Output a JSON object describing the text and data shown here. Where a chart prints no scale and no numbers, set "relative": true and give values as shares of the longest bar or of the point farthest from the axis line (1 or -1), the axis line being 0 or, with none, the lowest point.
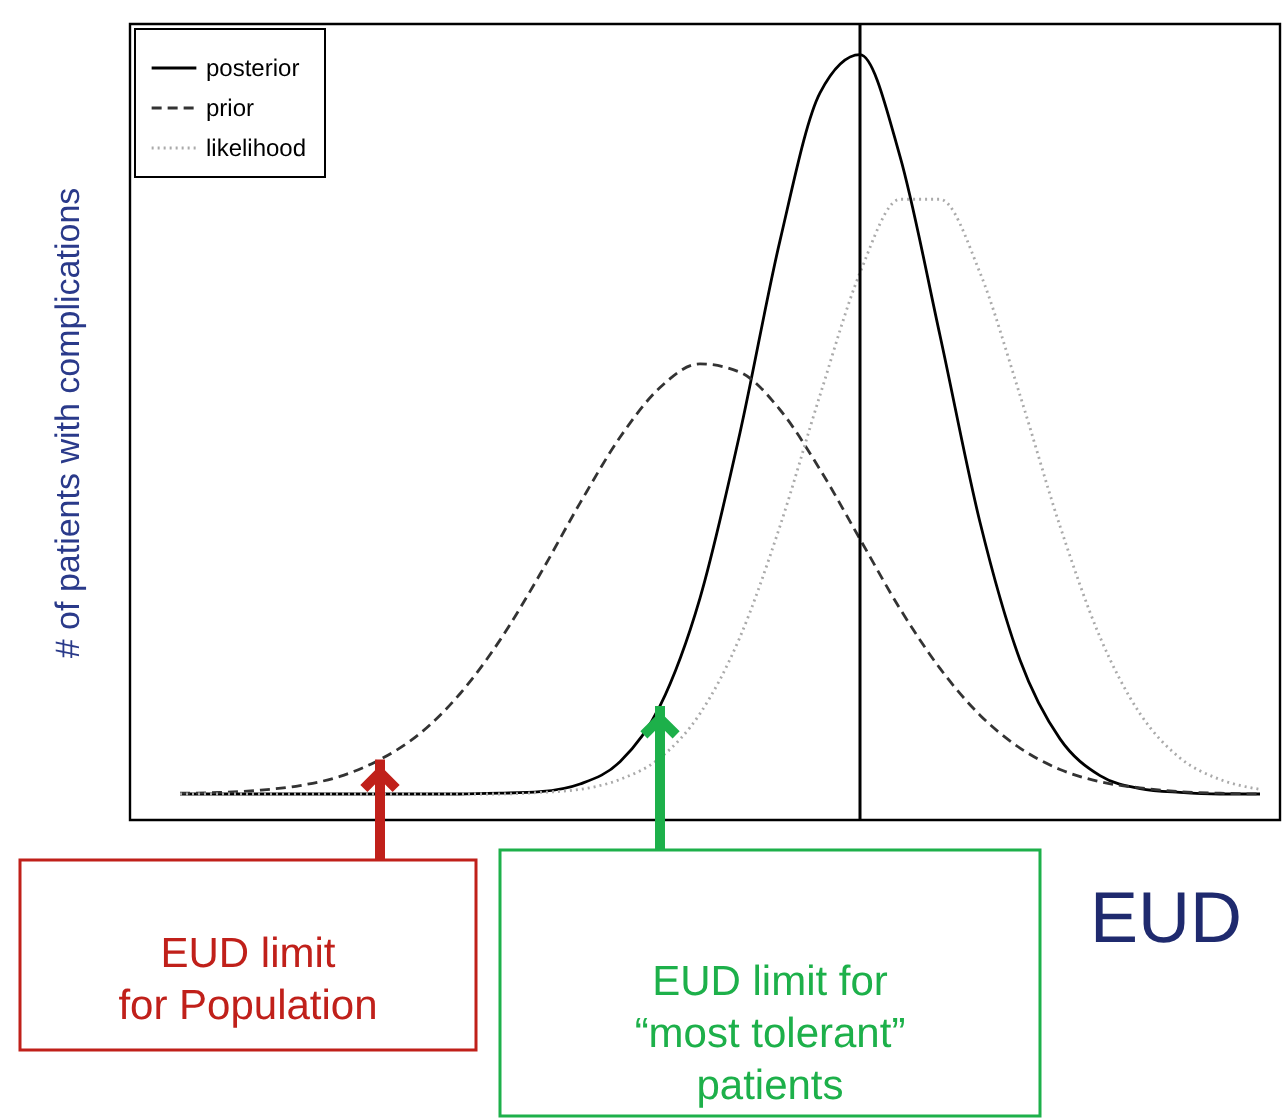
{
  "chart_data": {
    "type": "line",
    "relative": true,
    "xlabel": "EUD",
    "ylabel": "# of patients  with complications",
    "categories": [
      null,
      null,
      null,
      null,
      null,
      null,
      null,
      null,
      null,
      null,
      null,
      null,
      null,
      null,
      null,
      null,
      null,
      null,
      null,
      null,
      null,
      null,
      null,
      null,
      null,
      null,
      null,
      null
    ],
    "series": [
      {
        "name": "posterior",
        "color": "#000000",
        "line_style": "solid",
        "values": [
          0.034,
          0.034,
          0.034,
          0.034,
          0.034,
          0.034,
          0.034,
          0.034,
          0.035,
          0.037,
          0.047,
          0.076,
          0.149,
          0.29,
          0.506,
          0.757,
          0.95,
          1.0,
          0.867,
          0.633,
          0.389,
          0.209,
          0.106,
          0.058,
          0.041,
          0.036,
          0.034,
          0.034
        ]
      },
      {
        "name": "prior",
        "color": "#333333",
        "line_style": "dashed",
        "values": [
          0.035,
          0.036,
          0.039,
          0.045,
          0.057,
          0.079,
          0.113,
          0.165,
          0.235,
          0.321,
          0.414,
          0.5,
          0.565,
          0.596,
          0.585,
          0.536,
          0.458,
          0.367,
          0.276,
          0.198,
          0.137,
          0.094,
          0.066,
          0.05,
          0.042,
          0.037,
          0.035,
          0.034
        ]
      },
      {
        "name": "likelihood",
        "color": "#aaaaaa",
        "line_style": "dotted",
        "values": [
          0.034,
          0.034,
          0.034,
          0.034,
          0.034,
          0.034,
          0.034,
          0.034,
          0.034,
          0.036,
          0.04,
          0.053,
          0.081,
          0.139,
          0.239,
          0.384,
          0.555,
          0.715,
          0.811,
          0.811,
          0.715,
          0.555,
          0.384,
          0.239,
          0.139,
          0.081,
          0.053,
          0.04
        ]
      }
    ],
    "annotations": [
      "EUD limit\nfor Population",
      "EUD limit for\n“most tolerant”\npatients"
    ],
    "legend": "top left",
    "grid": false
  }
}
